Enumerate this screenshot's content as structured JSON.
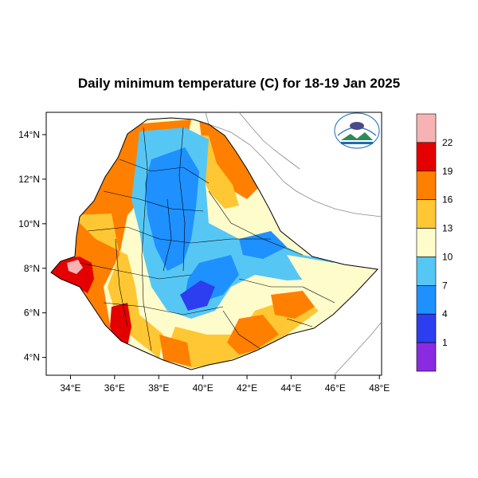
{
  "title": "Daily minimum temperature (C) for 18-19 Jan 2025",
  "map": {
    "lon_ticks": [
      "34°E",
      "36°E",
      "38°E",
      "40°E",
      "42°E",
      "44°E",
      "46°E",
      "48°E"
    ],
    "lat_ticks": [
      "14°N",
      "12°N",
      "10°N",
      "8°N",
      "6°N",
      "4°N"
    ],
    "lon_values": [
      34,
      36,
      38,
      40,
      42,
      44,
      46,
      48
    ],
    "lat_values": [
      14,
      12,
      10,
      8,
      6,
      4
    ],
    "lon_range": [
      32.9,
      48.1
    ],
    "lat_range": [
      3.2,
      15.0
    ]
  },
  "legend": {
    "labels": [
      "22",
      "19",
      "16",
      "13",
      "10",
      "7",
      "4",
      "1"
    ],
    "colors": [
      "#f7b3b3",
      "#e50000",
      "#ff7f00",
      "#ffc733",
      "#fffccc",
      "#56c7f4",
      "#1e90ff",
      "#2c3ef0",
      "#8a2be2"
    ]
  },
  "logo": {
    "name": "ethiopian-meteorology-institute-logo"
  },
  "colors": {
    "boundary": "#000000",
    "coast": "#888888"
  }
}
